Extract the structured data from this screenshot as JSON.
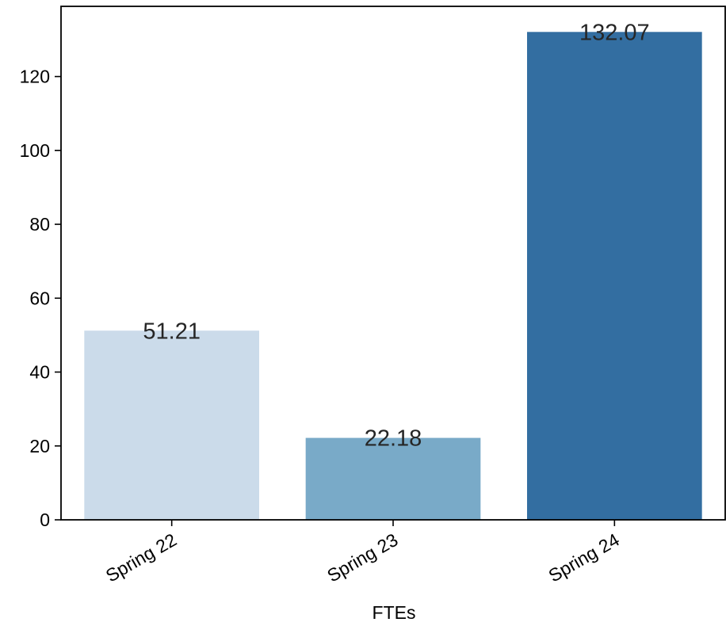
{
  "chart_data": {
    "type": "bar",
    "categories": [
      "Spring 22",
      "Spring 23",
      "Spring 24"
    ],
    "values": [
      51.21,
      22.18,
      132.07
    ],
    "data_labels": [
      "51.21",
      "22.18",
      "132.07"
    ],
    "bar_colors": [
      "#cbdbea",
      "#79aac8",
      "#336ea1"
    ],
    "title": "",
    "xlabel": "FTEs",
    "ylabel": "",
    "ylim": [
      0,
      139
    ],
    "yticks": [
      0,
      20,
      40,
      60,
      80,
      100,
      120
    ],
    "grid": false,
    "legend": "none"
  }
}
